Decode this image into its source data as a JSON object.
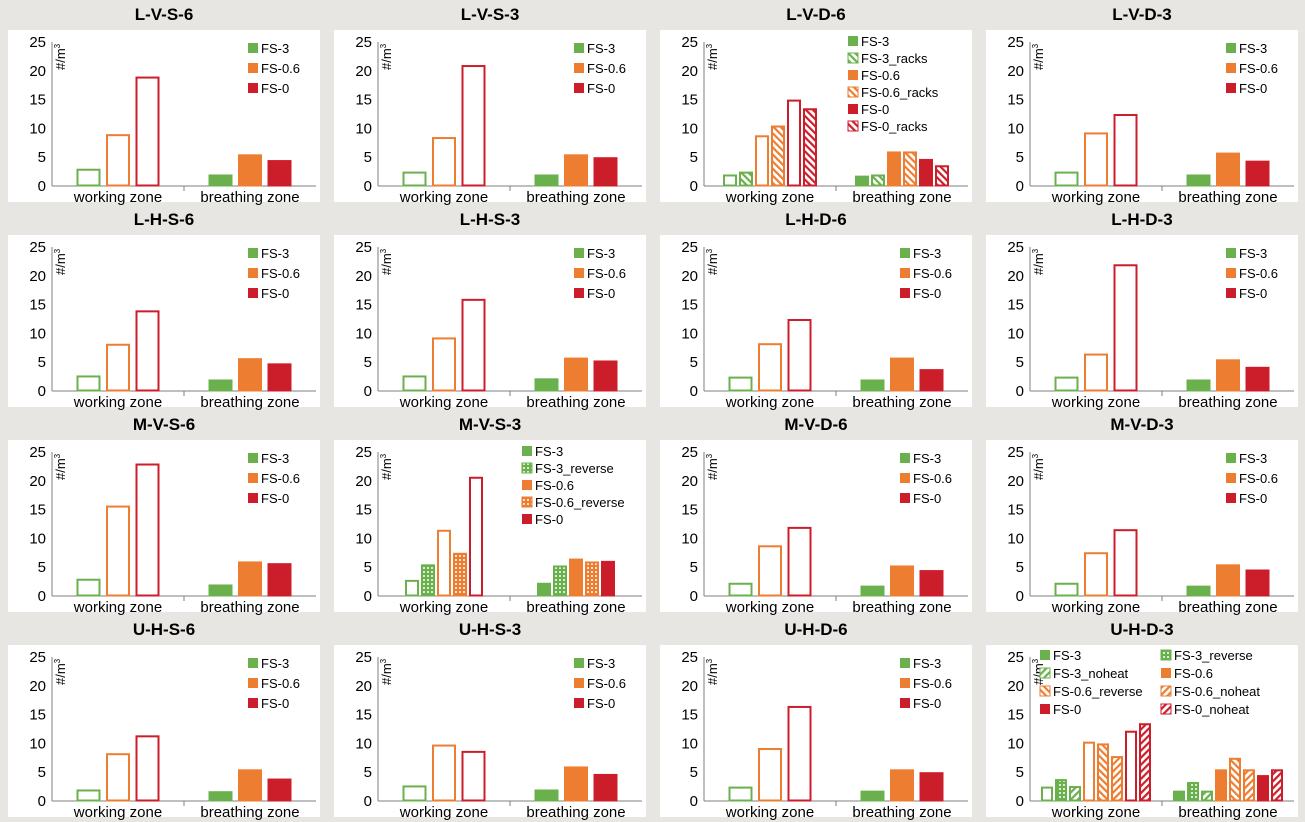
{
  "colors": {
    "green": "#6ab04c",
    "orange": "#ed7d31",
    "red": "#cc1e2a",
    "axis": "#7f7f7f"
  },
  "ylabel_main": "#/m",
  "ylabel_sup": "3",
  "categories": [
    "working zone",
    "breathing zone"
  ],
  "chart_data": [
    {
      "type": "bar",
      "title": "L-V-S-6",
      "ylim": [
        0,
        25
      ],
      "yticks": [
        "0",
        "5",
        "10",
        "15",
        "20",
        "25"
      ],
      "categories": [
        "working zone",
        "breathing zone"
      ],
      "series": [
        {
          "name": "FS-3",
          "color": "green",
          "values": [
            3,
            2
          ]
        },
        {
          "name": "FS-0.6",
          "color": "orange",
          "values": [
            9,
            5.5
          ]
        },
        {
          "name": "FS-0",
          "color": "red",
          "values": [
            19,
            4.5
          ]
        }
      ]
    },
    {
      "type": "bar",
      "title": "L-V-S-3",
      "ylim": [
        0,
        25
      ],
      "yticks": [
        "0",
        "5",
        "10",
        "15",
        "20",
        "25"
      ],
      "categories": [
        "working zone",
        "breathing zone"
      ],
      "series": [
        {
          "name": "FS-3",
          "color": "green",
          "values": [
            2.5,
            2
          ]
        },
        {
          "name": "FS-0.6",
          "color": "orange",
          "values": [
            8.5,
            5.5
          ]
        },
        {
          "name": "FS-0",
          "color": "red",
          "values": [
            21,
            5
          ]
        }
      ]
    },
    {
      "type": "bar",
      "title": "L-V-D-6",
      "ylim": [
        0,
        25
      ],
      "yticks": [
        "0",
        "5",
        "10",
        "15",
        "20",
        "25"
      ],
      "categories": [
        "working zone",
        "breathing zone"
      ],
      "series": [
        {
          "name": "FS-3",
          "color": "green",
          "values": [
            2,
            1.8
          ]
        },
        {
          "name": "FS-3_racks",
          "color": "green",
          "pattern": "hatch",
          "values": [
            2.5,
            2
          ]
        },
        {
          "name": "FS-0.6",
          "color": "orange",
          "values": [
            8.8,
            6
          ]
        },
        {
          "name": "FS-0.6_racks",
          "color": "orange",
          "pattern": "hatch",
          "values": [
            10.5,
            6
          ]
        },
        {
          "name": "FS-0",
          "color": "red",
          "values": [
            15,
            4.7
          ]
        },
        {
          "name": "FS-0_racks",
          "color": "red",
          "pattern": "hatch",
          "values": [
            13.5,
            3.6
          ]
        }
      ]
    },
    {
      "type": "bar",
      "title": "L-V-D-3",
      "ylim": [
        0,
        25
      ],
      "yticks": [
        "0",
        "5",
        "10",
        "15",
        "20",
        "25"
      ],
      "categories": [
        "working zone",
        "breathing zone"
      ],
      "series": [
        {
          "name": "FS-3",
          "color": "green",
          "values": [
            2.5,
            2
          ]
        },
        {
          "name": "FS-0.6",
          "color": "orange",
          "values": [
            9.3,
            5.8
          ]
        },
        {
          "name": "FS-0",
          "color": "red",
          "values": [
            12.5,
            4.4
          ]
        }
      ]
    },
    {
      "type": "bar",
      "title": "L-H-S-6",
      "ylim": [
        0,
        25
      ],
      "yticks": [
        "0",
        "5",
        "10",
        "15",
        "20",
        "25"
      ],
      "categories": [
        "working zone",
        "breathing zone"
      ],
      "series": [
        {
          "name": "FS-3",
          "color": "green",
          "values": [
            2.7,
            2
          ]
        },
        {
          "name": "FS-0.6",
          "color": "orange",
          "values": [
            8.2,
            5.7
          ]
        },
        {
          "name": "FS-0",
          "color": "red",
          "values": [
            14,
            4.8
          ]
        }
      ]
    },
    {
      "type": "bar",
      "title": "L-H-S-3",
      "ylim": [
        0,
        25
      ],
      "yticks": [
        "0",
        "5",
        "10",
        "15",
        "20",
        "25"
      ],
      "categories": [
        "working zone",
        "breathing zone"
      ],
      "series": [
        {
          "name": "FS-3",
          "color": "green",
          "values": [
            2.7,
            2.2
          ]
        },
        {
          "name": "FS-0.6",
          "color": "orange",
          "values": [
            9.3,
            5.8
          ]
        },
        {
          "name": "FS-0",
          "color": "red",
          "values": [
            16,
            5.3
          ]
        }
      ]
    },
    {
      "type": "bar",
      "title": "L-H-D-6",
      "ylim": [
        0,
        25
      ],
      "yticks": [
        "0",
        "5",
        "10",
        "15",
        "20",
        "25"
      ],
      "categories": [
        "working zone",
        "breathing zone"
      ],
      "series": [
        {
          "name": "FS-3",
          "color": "green",
          "values": [
            2.5,
            2
          ]
        },
        {
          "name": "FS-0.6",
          "color": "orange",
          "values": [
            8.3,
            5.8
          ]
        },
        {
          "name": "FS-0",
          "color": "red",
          "values": [
            12.5,
            3.8
          ]
        }
      ]
    },
    {
      "type": "bar",
      "title": "L-H-D-3",
      "ylim": [
        0,
        25
      ],
      "yticks": [
        "0",
        "5",
        "10",
        "15",
        "20",
        "25"
      ],
      "categories": [
        "working zone",
        "breathing zone"
      ],
      "series": [
        {
          "name": "FS-3",
          "color": "green",
          "values": [
            2.5,
            2
          ]
        },
        {
          "name": "FS-0.6",
          "color": "orange",
          "values": [
            6.5,
            5.5
          ]
        },
        {
          "name": "FS-0",
          "color": "red",
          "values": [
            22,
            4.2
          ]
        }
      ]
    },
    {
      "type": "bar",
      "title": "M-V-S-6",
      "ylim": [
        0,
        25
      ],
      "yticks": [
        "0",
        "5",
        "10",
        "15",
        "20",
        "25"
      ],
      "categories": [
        "working zone",
        "breathing zone"
      ],
      "series": [
        {
          "name": "FS-3",
          "color": "green",
          "values": [
            3,
            2
          ]
        },
        {
          "name": "FS-0.6",
          "color": "orange",
          "values": [
            15.7,
            6
          ]
        },
        {
          "name": "FS-0",
          "color": "red",
          "values": [
            23,
            5.7
          ]
        }
      ]
    },
    {
      "type": "bar",
      "title": "M-V-S-3",
      "ylim": [
        0,
        25
      ],
      "yticks": [
        "0",
        "5",
        "10",
        "15",
        "20",
        "25"
      ],
      "categories": [
        "working zone",
        "breathing zone"
      ],
      "series": [
        {
          "name": "FS-3",
          "color": "green",
          "values": [
            2.8,
            2.3
          ]
        },
        {
          "name": "FS-3_reverse",
          "color": "green",
          "pattern": "dots",
          "values": [
            5.5,
            5.3
          ]
        },
        {
          "name": "FS-0.6",
          "color": "orange",
          "values": [
            11.5,
            6.5
          ]
        },
        {
          "name": "FS-0.6_reverse",
          "color": "orange",
          "pattern": "dots",
          "values": [
            7.5,
            6
          ]
        },
        {
          "name": "FS-0",
          "color": "red",
          "values": [
            20.7,
            6.1
          ]
        }
      ]
    },
    {
      "type": "bar",
      "title": "M-V-D-6",
      "ylim": [
        0,
        25
      ],
      "yticks": [
        "0",
        "5",
        "10",
        "15",
        "20",
        "25"
      ],
      "categories": [
        "working zone",
        "breathing zone"
      ],
      "series": [
        {
          "name": "FS-3",
          "color": "green",
          "values": [
            2.3,
            1.8
          ]
        },
        {
          "name": "FS-0.6",
          "color": "orange",
          "values": [
            8.8,
            5.3
          ]
        },
        {
          "name": "FS-0",
          "color": "red",
          "values": [
            12,
            4.5
          ]
        }
      ]
    },
    {
      "type": "bar",
      "title": "M-V-D-3",
      "ylim": [
        0,
        25
      ],
      "yticks": [
        "0",
        "5",
        "10",
        "15",
        "20",
        "25"
      ],
      "categories": [
        "working zone",
        "breathing zone"
      ],
      "series": [
        {
          "name": "FS-3",
          "color": "green",
          "values": [
            2.3,
            1.8
          ]
        },
        {
          "name": "FS-0.6",
          "color": "orange",
          "values": [
            7.6,
            5.5
          ]
        },
        {
          "name": "FS-0",
          "color": "red",
          "values": [
            11.6,
            4.6
          ]
        }
      ]
    },
    {
      "type": "bar",
      "title": "U-H-S-6",
      "ylim": [
        0,
        25
      ],
      "yticks": [
        "0",
        "5",
        "10",
        "15",
        "20",
        "25"
      ],
      "categories": [
        "working zone",
        "breathing zone"
      ],
      "series": [
        {
          "name": "FS-3",
          "color": "green",
          "values": [
            2,
            1.7
          ]
        },
        {
          "name": "FS-0.6",
          "color": "orange",
          "values": [
            8.3,
            5.5
          ]
        },
        {
          "name": "FS-0",
          "color": "red",
          "values": [
            11.4,
            3.9
          ]
        }
      ]
    },
    {
      "type": "bar",
      "title": "U-H-S-3",
      "ylim": [
        0,
        25
      ],
      "yticks": [
        "0",
        "5",
        "10",
        "15",
        "20",
        "25"
      ],
      "categories": [
        "working zone",
        "breathing zone"
      ],
      "series": [
        {
          "name": "FS-3",
          "color": "green",
          "values": [
            2.7,
            2
          ]
        },
        {
          "name": "FS-0.6",
          "color": "orange",
          "values": [
            9.8,
            6
          ]
        },
        {
          "name": "FS-0",
          "color": "red",
          "values": [
            8.7,
            4.7
          ]
        }
      ]
    },
    {
      "type": "bar",
      "title": "U-H-D-6",
      "ylim": [
        0,
        25
      ],
      "yticks": [
        "0",
        "5",
        "10",
        "15",
        "20",
        "25"
      ],
      "categories": [
        "working zone",
        "breathing zone"
      ],
      "series": [
        {
          "name": "FS-3",
          "color": "green",
          "values": [
            2.5,
            1.8
          ]
        },
        {
          "name": "FS-0.6",
          "color": "orange",
          "values": [
            9.2,
            5.5
          ]
        },
        {
          "name": "FS-0",
          "color": "red",
          "values": [
            16.5,
            5
          ]
        }
      ]
    },
    {
      "type": "bar",
      "title": "U-H-D-3",
      "ylim": [
        0,
        25
      ],
      "yticks": [
        "0",
        "5",
        "10",
        "15",
        "20",
        "25"
      ],
      "categories": [
        "working zone",
        "breathing zone"
      ],
      "series": [
        {
          "name": "FS-3",
          "color": "green",
          "values": [
            2.5,
            1.8
          ]
        },
        {
          "name": "FS-3_reverse",
          "color": "green",
          "pattern": "dots",
          "values": [
            3.8,
            3.3
          ]
        },
        {
          "name": "FS-3_noheat",
          "color": "green",
          "pattern": "stripes",
          "values": [
            2.6,
            1.8
          ]
        },
        {
          "name": "FS-0.6",
          "color": "orange",
          "values": [
            10.3,
            5.5
          ]
        },
        {
          "name": "FS-0.6_reverse",
          "color": "orange",
          "pattern": "hatch",
          "values": [
            10,
            7.5
          ]
        },
        {
          "name": "FS-0.6_noheat",
          "color": "orange",
          "pattern": "stripes",
          "values": [
            7.8,
            5.5
          ]
        },
        {
          "name": "FS-0",
          "color": "red",
          "values": [
            12.2,
            4.5
          ]
        },
        {
          "name": "FS-0_noheat",
          "color": "red",
          "pattern": "stripes",
          "values": [
            13.5,
            5.5
          ]
        }
      ]
    }
  ]
}
